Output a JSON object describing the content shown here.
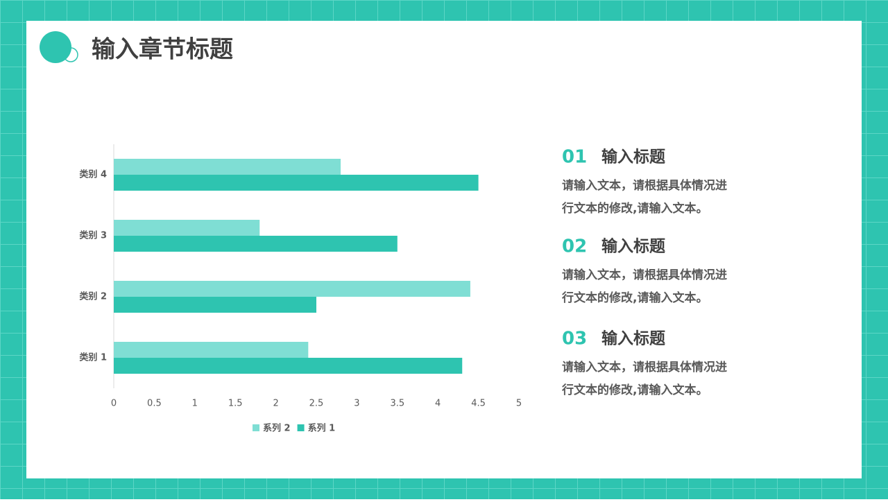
{
  "header": {
    "title": "输入章节标题"
  },
  "chart_data": {
    "type": "bar",
    "orientation": "horizontal",
    "categories": [
      "类别 1",
      "类别 2",
      "类别 3",
      "类别 4"
    ],
    "series": [
      {
        "name": "系列 2",
        "color": "#7fded4",
        "values": [
          2.4,
          4.4,
          1.8,
          2.8
        ]
      },
      {
        "name": "系列 1",
        "color": "#2ec4b0",
        "values": [
          4.3,
          2.5,
          3.5,
          4.5
        ]
      }
    ],
    "xlim": [
      0,
      5
    ],
    "xticks": [
      0,
      0.5,
      1,
      1.5,
      2,
      2.5,
      3,
      3.5,
      4,
      4.5,
      5
    ],
    "grid": false,
    "legend": "bottom"
  },
  "items": [
    {
      "number": "01",
      "heading": "输入标题",
      "lines": [
        "请输入文本，请根据具体情况进",
        "行文本的修改,请输入文本。"
      ]
    },
    {
      "number": "02",
      "heading": "输入标题",
      "lines": [
        "请输入文本，请根据具体情况进",
        "行文本的修改,请输入文本。"
      ]
    },
    {
      "number": "03",
      "heading": "输入标题",
      "lines": [
        "请输入文本，请根据具体情况进",
        "行文本的修改,请输入文本。"
      ]
    }
  ]
}
